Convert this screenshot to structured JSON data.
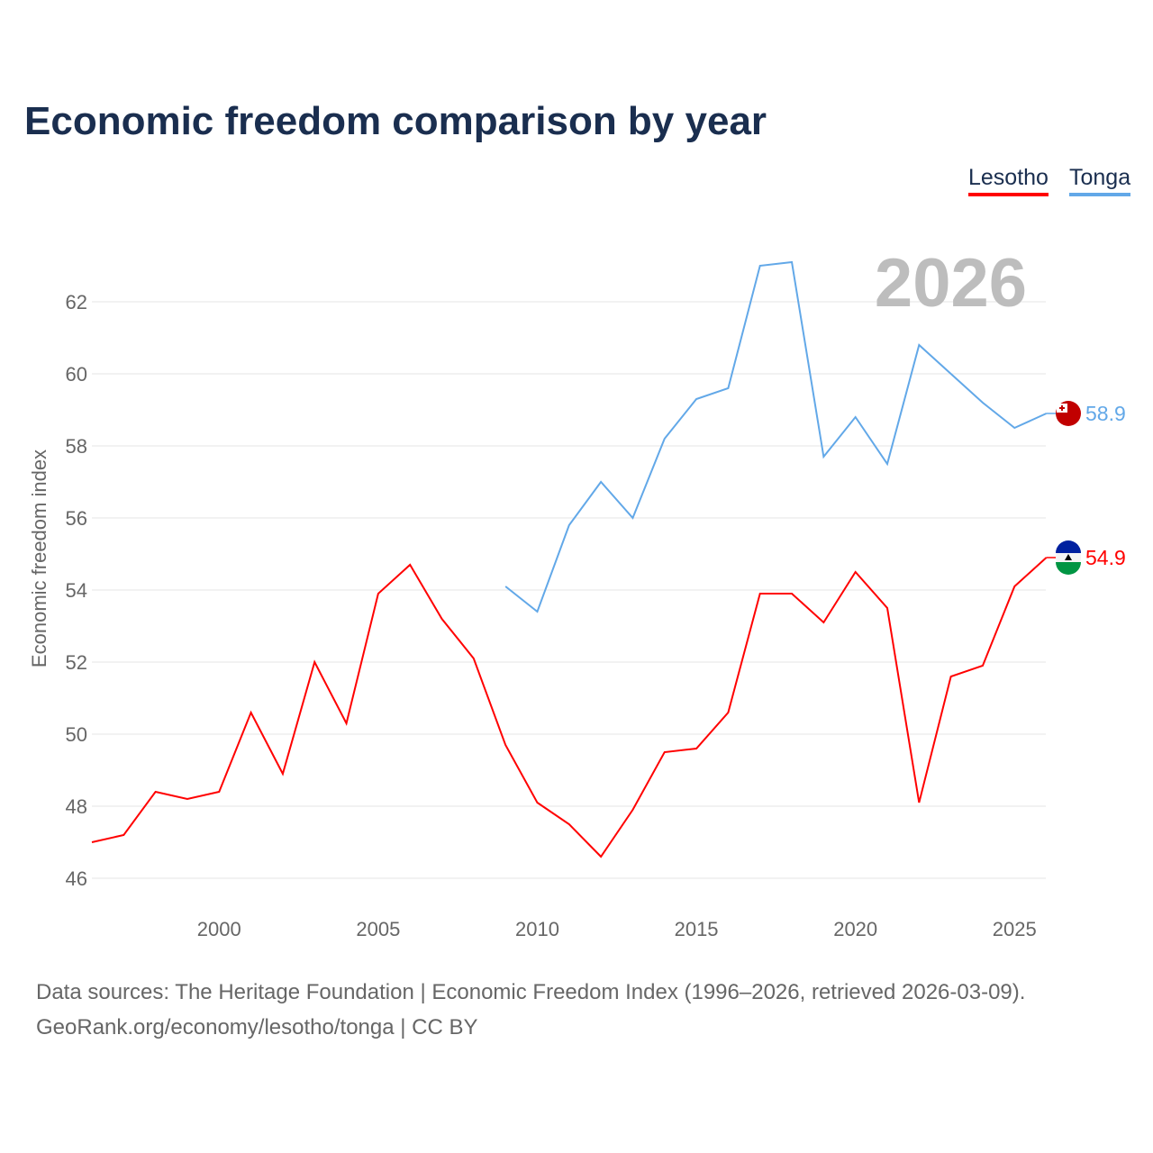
{
  "chart_data": {
    "type": "line",
    "title": "Economic freedom comparison by year",
    "xlabel": "",
    "ylabel": "Economic freedom index",
    "year_label": "2026",
    "xlim": [
      1996,
      2026
    ],
    "ylim": [
      45.3,
      63.5
    ],
    "x_ticks": [
      2000,
      2005,
      2010,
      2015,
      2020,
      2025
    ],
    "y_ticks": [
      46,
      48,
      50,
      52,
      54,
      56,
      58,
      60,
      62
    ],
    "grid": true,
    "legend_position": "top-right",
    "series": [
      {
        "name": "Lesotho",
        "color": "#ff0000",
        "end_label": "54.9",
        "x": [
          1996,
          1997,
          1998,
          1999,
          2000,
          2001,
          2002,
          2003,
          2004,
          2005,
          2006,
          2007,
          2008,
          2009,
          2010,
          2011,
          2012,
          2013,
          2014,
          2015,
          2016,
          2017,
          2018,
          2019,
          2020,
          2021,
          2022,
          2023,
          2024,
          2025,
          2026
        ],
        "values": [
          47.0,
          47.2,
          48.4,
          48.2,
          48.4,
          50.6,
          48.9,
          52.0,
          50.3,
          53.9,
          54.7,
          53.2,
          52.1,
          49.7,
          48.1,
          47.5,
          46.6,
          47.9,
          49.5,
          49.6,
          50.6,
          53.9,
          53.9,
          53.1,
          54.5,
          53.5,
          48.1,
          51.6,
          51.9,
          54.1,
          54.9
        ]
      },
      {
        "name": "Tonga",
        "color": "#62a8e8",
        "end_label": "58.9",
        "x": [
          2009,
          2010,
          2011,
          2012,
          2013,
          2014,
          2015,
          2016,
          2017,
          2018,
          2019,
          2020,
          2021,
          2022,
          2023,
          2024,
          2025,
          2026
        ],
        "values": [
          54.1,
          53.4,
          55.8,
          57.0,
          56.0,
          58.2,
          59.3,
          59.6,
          63.0,
          63.1,
          57.7,
          58.8,
          57.5,
          60.8,
          60.0,
          59.2,
          58.5,
          58.9
        ]
      }
    ]
  },
  "footer": {
    "line1": "Data sources: The Heritage Foundation | Economic Freedom Index (1996–2026, retrieved 2026-03-09).",
    "line2": "GeoRank.org/economy/lesotho/tonga | CC BY"
  }
}
